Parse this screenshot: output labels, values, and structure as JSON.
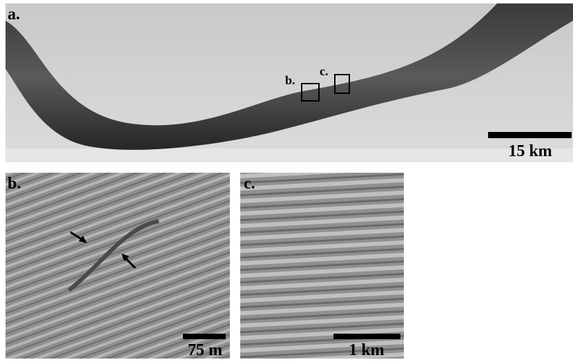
{
  "panels": [
    {
      "label": "a.",
      "scale_bar": "15 km",
      "insets": [
        "b.",
        "c."
      ]
    },
    {
      "label": "b.",
      "scale_bar": "75 m"
    },
    {
      "label": "c.",
      "scale_bar": "1 km"
    }
  ]
}
